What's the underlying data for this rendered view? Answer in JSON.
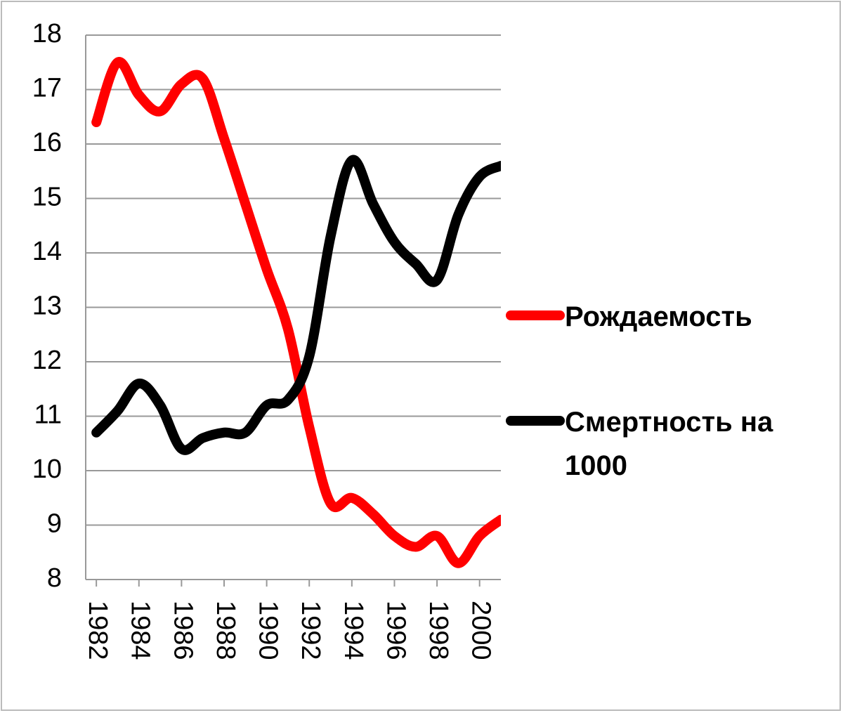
{
  "chart_data": {
    "type": "line",
    "x": [
      1982,
      1983,
      1984,
      1985,
      1986,
      1987,
      1988,
      1989,
      1990,
      1991,
      1992,
      1993,
      1994,
      1995,
      1996,
      1997,
      1998,
      1999,
      2000,
      2001
    ],
    "series": [
      {
        "name": "Рождаемость",
        "color": "#ff0000",
        "values": [
          16.4,
          17.5,
          16.9,
          16.6,
          17.1,
          17.2,
          16.1,
          14.9,
          13.7,
          12.6,
          10.8,
          9.4,
          9.5,
          9.2,
          8.8,
          8.6,
          8.8,
          8.3,
          8.8,
          9.1
        ]
      },
      {
        "name": "Смертность на 1000",
        "color": "#000000",
        "values": [
          10.7,
          11.1,
          11.6,
          11.2,
          10.4,
          10.6,
          10.7,
          10.7,
          11.2,
          11.3,
          12.1,
          14.3,
          15.7,
          14.9,
          14.2,
          13.8,
          13.5,
          14.7,
          15.4,
          15.6
        ]
      }
    ],
    "xlim": [
      1981.5,
      2001
    ],
    "xticks": [
      1982,
      1984,
      1986,
      1988,
      1990,
      1992,
      1994,
      1996,
      1998,
      2000
    ],
    "ylim": [
      8,
      18
    ],
    "yticks": [
      8,
      9,
      10,
      11,
      12,
      13,
      14,
      15,
      16,
      17,
      18
    ],
    "grid": true,
    "legend": "right"
  }
}
